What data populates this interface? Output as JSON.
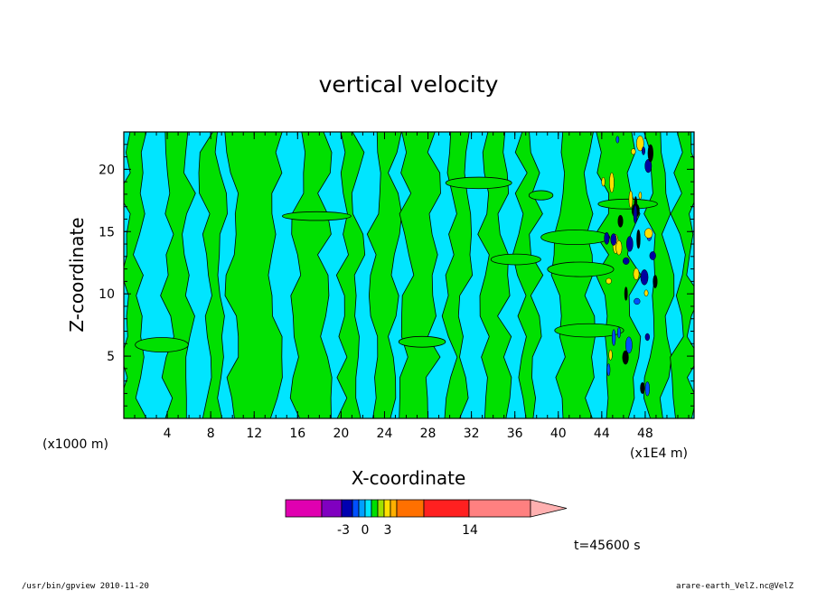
{
  "chart_data": {
    "type": "heatmap",
    "title": "vertical velocity",
    "xlabel": "X-coordinate",
    "ylabel": "Z-coordinate",
    "x_unit_left": "(x1000 m)",
    "x_unit_right": "(x1E4 m)",
    "xlim": [
      0,
      52.5
    ],
    "ylim": [
      0,
      23
    ],
    "x_ticks": [
      4,
      8,
      12,
      16,
      20,
      24,
      28,
      32,
      36,
      40,
      44,
      48
    ],
    "y_ticks": [
      5,
      10,
      15,
      20
    ],
    "colors": {
      "negative_small": "#00e5ff",
      "positive_small": "#00e000",
      "strong": "#0000a0",
      "contour": "#000000"
    },
    "colorbar": {
      "colors": [
        "#e000b0",
        "#8000c0",
        "#0000b0",
        "#0050ff",
        "#00a0ff",
        "#00e5ff",
        "#00e000",
        "#a0e000",
        "#ffe000",
        "#ffb000",
        "#ff7000",
        "#ff2020",
        "#ff8080",
        "#ffb0b0"
      ],
      "labels": [
        "-3",
        "0",
        "3",
        "14"
      ]
    },
    "time_label": "t=45600 s"
  },
  "footer": {
    "left": "/usr/bin/gpview   2010-11-20",
    "right": "arare-earth_VelZ.nc@VelZ"
  }
}
